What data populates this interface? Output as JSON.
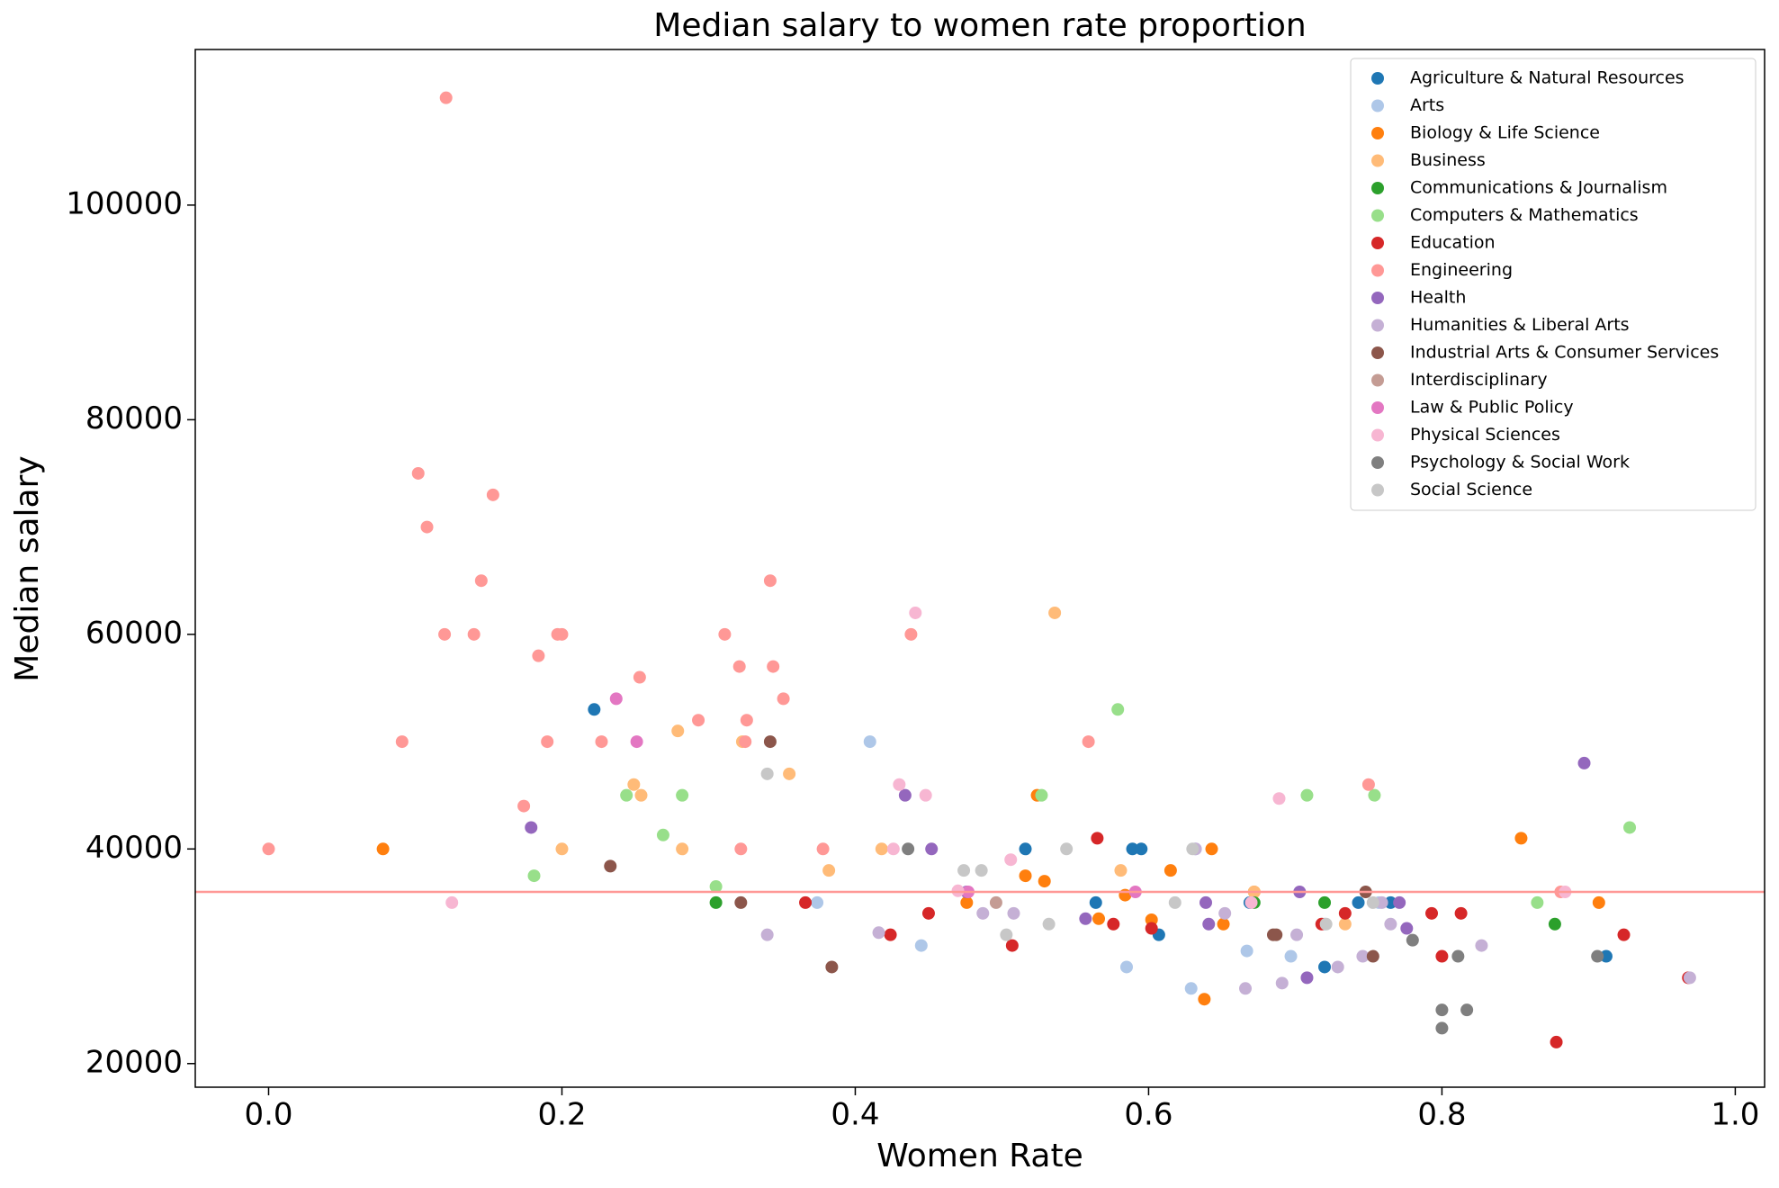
{
  "chart_data": {
    "type": "scatter",
    "title": "Median salary to women rate proportion",
    "x_label": "Women Rate",
    "y_label": "Median salary",
    "xlim": [
      -0.05,
      1.02
    ],
    "ylim": [
      17800,
      114500
    ],
    "xticks": [
      {
        "value": 0,
        "label": "0.0"
      },
      0.2,
      0.4,
      0.6,
      0.8,
      {
        "value": 1,
        "label": "1.0"
      }
    ],
    "yticks": [
      20000,
      40000,
      60000,
      80000,
      100000
    ],
    "hline_y": 36000,
    "hline_color": "#ff9896",
    "legend": "upper right",
    "series": [
      {
        "name": "Agriculture & Natural Resources",
        "color": "#1f77b4",
        "x": [
          0.222,
          0.516,
          0.564,
          0.589,
          0.595,
          0.607,
          0.669,
          0.72,
          0.743,
          0.765,
          0.912
        ],
        "y": [
          53000,
          40000,
          35000,
          40000,
          40000,
          32000,
          35000,
          29000,
          35000,
          35000,
          30000
        ]
      },
      {
        "name": "Arts",
        "color": "#aec7e8",
        "x": [
          0.374,
          0.41,
          0.445,
          0.585,
          0.629,
          0.632,
          0.667,
          0.697,
          0.72,
          0.757
        ],
        "y": [
          35000,
          50000,
          31000,
          29000,
          27000,
          40000,
          30500,
          30000,
          33000,
          35000
        ]
      },
      {
        "name": "Biology & Life Science",
        "color": "#ff7f0e",
        "x": [
          0.078,
          0.476,
          0.516,
          0.524,
          0.529,
          0.566,
          0.584,
          0.602,
          0.615,
          0.638,
          0.643,
          0.651,
          0.672,
          0.854,
          0.907
        ],
        "y": [
          40000,
          35000,
          37500,
          45000,
          37000,
          33500,
          35700,
          33400,
          38000,
          26000,
          40000,
          33000,
          36000,
          41000,
          35000
        ]
      },
      {
        "name": "Business",
        "color": "#ffbb78",
        "x": [
          0.2,
          0.249,
          0.254,
          0.279,
          0.282,
          0.323,
          0.355,
          0.382,
          0.418,
          0.536,
          0.581,
          0.672,
          0.734
        ],
        "y": [
          40000,
          46000,
          45000,
          51000,
          40000,
          50000,
          47000,
          38000,
          40000,
          62000,
          38000,
          36000,
          33000
        ]
      },
      {
        "name": "Communications & Journalism",
        "color": "#2ca02c",
        "x": [
          0.305,
          0.672,
          0.72,
          0.877
        ],
        "y": [
          35000,
          35000,
          35000,
          33000
        ]
      },
      {
        "name": "Computers & Mathematics",
        "color": "#98df8a",
        "x": [
          0.181,
          0.244,
          0.269,
          0.282,
          0.305,
          0.527,
          0.579,
          0.708,
          0.754,
          0.865,
          0.928
        ],
        "y": [
          37500,
          45000,
          41300,
          45000,
          36500,
          45000,
          53000,
          45000,
          45000,
          35000,
          42000
        ]
      },
      {
        "name": "Education",
        "color": "#d62728",
        "x": [
          0.366,
          0.424,
          0.45,
          0.507,
          0.565,
          0.576,
          0.602,
          0.718,
          0.734,
          0.793,
          0.8,
          0.813,
          0.878,
          0.924,
          0.968
        ],
        "y": [
          35000,
          32000,
          34000,
          31000,
          41000,
          33000,
          32600,
          33000,
          34000,
          34000,
          30000,
          34000,
          22000,
          32000,
          28000
        ]
      },
      {
        "name": "Engineering",
        "color": "#ff9896",
        "x": [
          0,
          0.091,
          0.102,
          0.108,
          0.121,
          0.12,
          0.14,
          0.145,
          0.153,
          0.174,
          0.184,
          0.19,
          0.197,
          0.2,
          0.227,
          0.253,
          0.293,
          0.311,
          0.321,
          0.322,
          0.325,
          0.326,
          0.342,
          0.344,
          0.351,
          0.378,
          0.438,
          0.559,
          0.75,
          0.881
        ],
        "y": [
          40000,
          50000,
          75000,
          70000,
          110000,
          60000,
          60000,
          65000,
          73000,
          44000,
          58000,
          50000,
          60000,
          60000,
          50000,
          56000,
          52000,
          60000,
          57000,
          40000,
          50000,
          52000,
          65000,
          57000,
          54000,
          40000,
          60000,
          50000,
          46000,
          36000
        ]
      },
      {
        "name": "Health",
        "color": "#9467bd",
        "x": [
          0.179,
          0.434,
          0.452,
          0.476,
          0.557,
          0.639,
          0.641,
          0.703,
          0.708,
          0.771,
          0.776,
          0.897
        ],
        "y": [
          42000,
          45000,
          40000,
          36000,
          33500,
          35000,
          33000,
          36000,
          28000,
          35000,
          32600,
          48000
        ]
      },
      {
        "name": "Humanities & Liberal Arts",
        "color": "#c5b0d5",
        "x": [
          0.34,
          0.416,
          0.487,
          0.508,
          0.632,
          0.652,
          0.666,
          0.691,
          0.701,
          0.729,
          0.746,
          0.759,
          0.765,
          0.827,
          0.969
        ],
        "y": [
          32000,
          32200,
          34000,
          34000,
          40000,
          34000,
          27000,
          27500,
          32000,
          29000,
          30000,
          35000,
          33000,
          31000,
          28000
        ]
      },
      {
        "name": "Industrial Arts & Consumer Services",
        "color": "#8c564b",
        "x": [
          0.233,
          0.322,
          0.342,
          0.384,
          0.685,
          0.687,
          0.748,
          0.753
        ],
        "y": [
          38400,
          35000,
          50000,
          29000,
          32000,
          32000,
          36000,
          30000
        ]
      },
      {
        "name": "Interdisciplinary",
        "color": "#c49c94",
        "x": [
          0.496
        ],
        "y": [
          35000
        ]
      },
      {
        "name": "Law & Public Policy",
        "color": "#e377c2",
        "x": [
          0.237,
          0.251,
          0.477,
          0.591
        ],
        "y": [
          54000,
          50000,
          36000,
          36000
        ]
      },
      {
        "name": "Physical Sciences",
        "color": "#f7b6d2",
        "x": [
          0.125,
          0.426,
          0.43,
          0.441,
          0.448,
          0.47,
          0.506,
          0.67,
          0.689,
          0.884
        ],
        "y": [
          35000,
          40000,
          46000,
          62000,
          45000,
          36100,
          39000,
          35000,
          44700,
          36000
        ]
      },
      {
        "name": "Psychology & Social Work",
        "color": "#7f7f7f",
        "x": [
          0.436,
          0.78,
          0.8,
          0.8,
          0.811,
          0.817,
          0.906
        ],
        "y": [
          40000,
          31500,
          25000,
          23300,
          30000,
          25000,
          30000
        ]
      },
      {
        "name": "Social Science",
        "color": "#c7c7c7",
        "x": [
          0.34,
          0.474,
          0.486,
          0.503,
          0.532,
          0.544,
          0.618,
          0.63,
          0.721,
          0.753
        ],
        "y": [
          47000,
          38000,
          38000,
          32000,
          33000,
          40000,
          35000,
          40000,
          33000,
          35000
        ]
      }
    ]
  }
}
